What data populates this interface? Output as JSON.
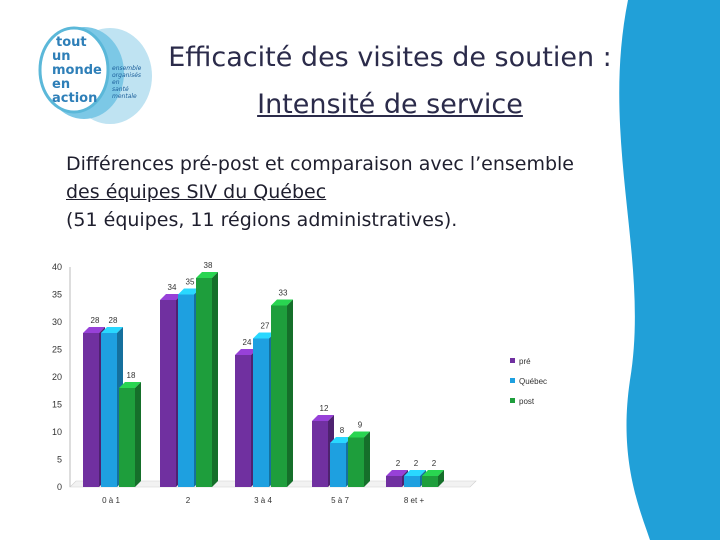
{
  "header": {
    "title_line1": "Efficacité des visites de soutien :",
    "title_line2": "Intensité de service"
  },
  "subtitle": {
    "line1": "Différences pré-post et comparaison avec l’ensemble",
    "line2": "des équipes SIV du Québec",
    "line3": "(51 équipes, 11 régions administratives)."
  },
  "logo": {
    "text": [
      "tout",
      "un",
      "monde",
      "en",
      "action"
    ],
    "colors": [
      "#5bb8d9",
      "#2e7fb8",
      "#1b5e9a"
    ]
  },
  "colors": {
    "pre": "#7030a0",
    "quebec": "#1ea0e0",
    "post": "#1e9e3c",
    "wave": "#21a0d8"
  },
  "chart_data": {
    "type": "bar",
    "categories": [
      "0 à 1",
      "2",
      "3 à 4",
      "5 à 7",
      "8 et +"
    ],
    "series": [
      {
        "name": "pré",
        "values": [
          28,
          34,
          24,
          12,
          2
        ]
      },
      {
        "name": "Québec",
        "values": [
          28,
          35,
          27,
          8,
          2
        ]
      },
      {
        "name": "post",
        "values": [
          18,
          38,
          33,
          9,
          2
        ]
      }
    ],
    "yticks": [
      0,
      5,
      10,
      15,
      20,
      25,
      30,
      35,
      40
    ],
    "ylim": [
      0,
      40
    ],
    "style": "3d-bar",
    "legend": "right"
  }
}
